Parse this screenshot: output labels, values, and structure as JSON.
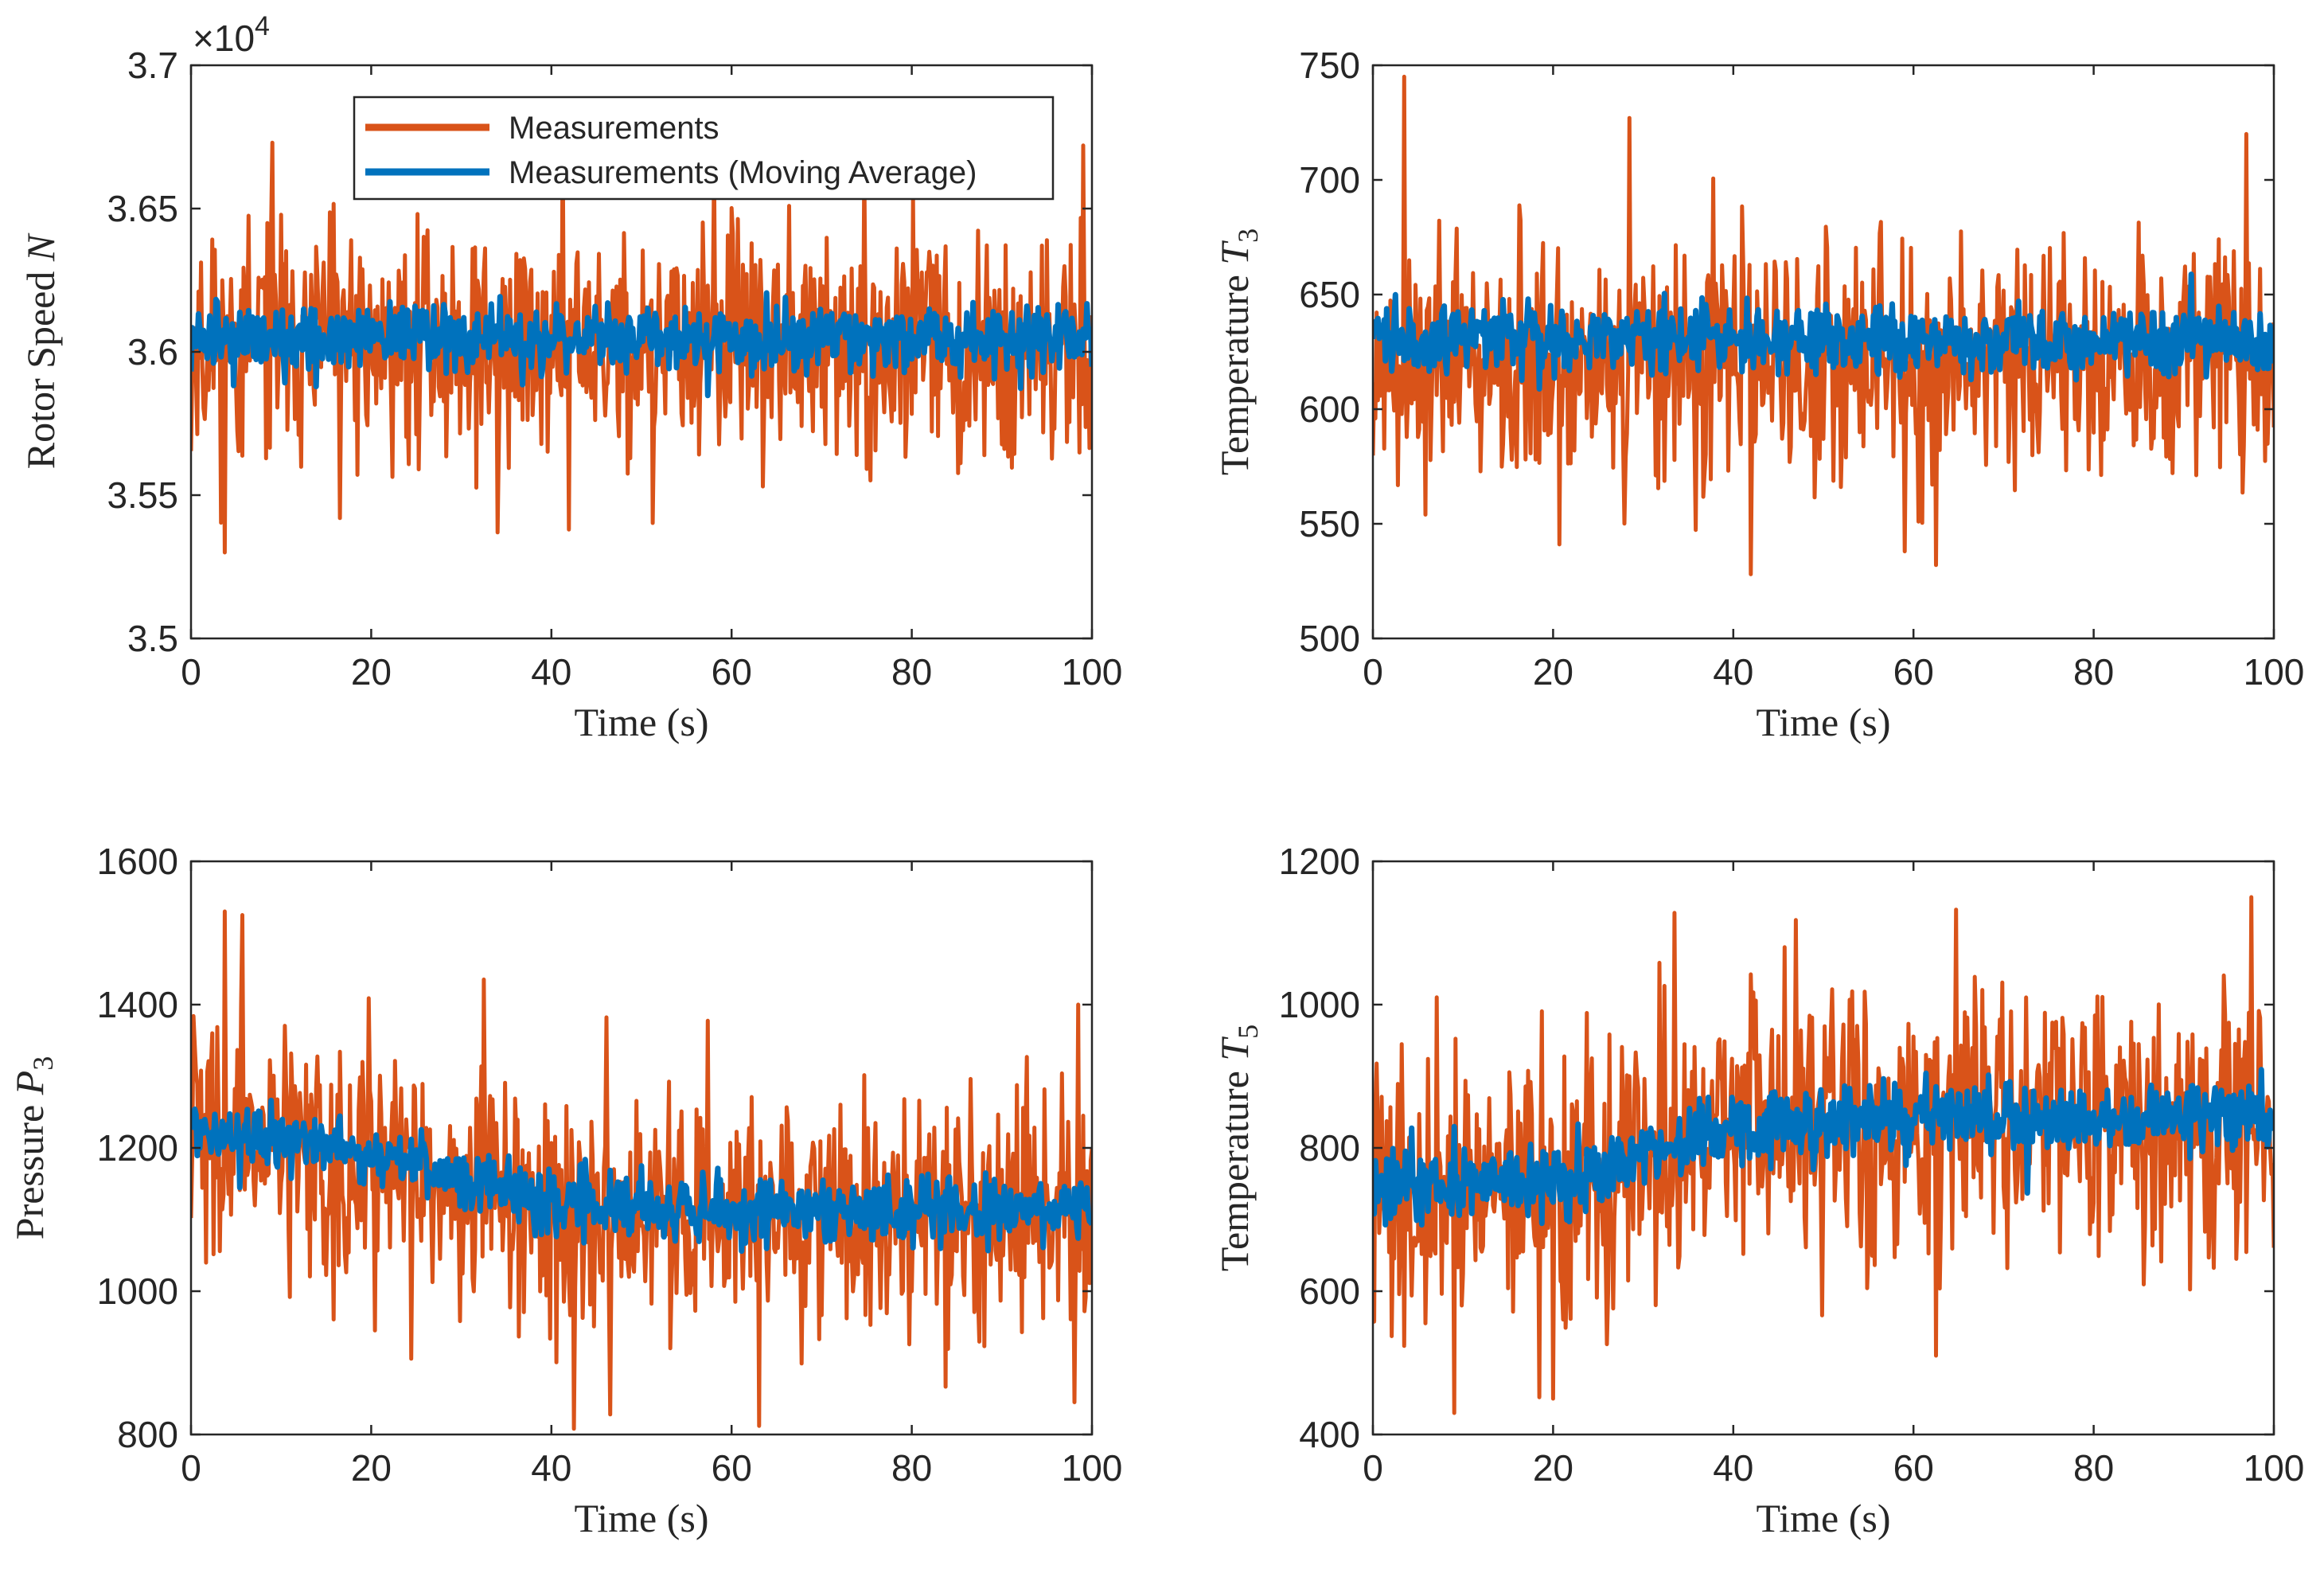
{
  "figure": {
    "legend": {
      "entries": [
        "Measurements",
        "Measurements (Moving Average)"
      ],
      "placement": "top-left of first panel"
    },
    "colors": {
      "measurements": "#D95319",
      "moving_average": "#0072BD",
      "axes": "#262626"
    }
  },
  "chart_data": [
    {
      "type": "line",
      "ylabel_text": "Rotor Speed ",
      "ylabel_sym": "N",
      "ylabel_sub": "",
      "xlabel": "Time (s)",
      "xlim": [
        0,
        100
      ],
      "ylim": [
        35000,
        37000
      ],
      "exponent": "×10",
      "exponent_power": "4",
      "xticks": [
        "0",
        "20",
        "40",
        "60",
        "80",
        "100"
      ],
      "yticks": [
        "3.5",
        "3.55",
        "3.6",
        "3.65",
        "3.7"
      ],
      "series": [
        {
          "name": "Measurements",
          "mean": [
            [
              0,
              36020
            ],
            [
              100,
              36020
            ]
          ],
          "noise_sd": 200,
          "seed": 11,
          "dips": [
            [
              3.8,
              35300
            ],
            [
              42,
              35380
            ],
            [
              34,
              35370
            ],
            [
              16.5,
              35420
            ]
          ],
          "peaks": [
            [
              9,
              36730
            ],
            [
              99,
              36720
            ],
            [
              58,
              36640
            ]
          ]
        },
        {
          "name": "Measurements (Moving Average)",
          "mean": [
            [
              0,
              36050
            ],
            [
              100,
              36050
            ]
          ],
          "noise_sd": 55,
          "seed": 12
        }
      ]
    },
    {
      "type": "line",
      "ylabel_text": "Temperature ",
      "ylabel_sym": "T",
      "ylabel_sub": "3",
      "xlabel": "Time (s)",
      "xlim": [
        0,
        100
      ],
      "ylim": [
        500,
        750
      ],
      "exponent": "",
      "exponent_power": "",
      "xticks": [
        "0",
        "20",
        "40",
        "60",
        "80",
        "100"
      ],
      "yticks": [
        "500",
        "550",
        "600",
        "650",
        "700",
        "750"
      ],
      "series": [
        {
          "name": "Measurements",
          "mean": [
            [
              0,
              620
            ],
            [
              100,
              620
            ]
          ],
          "noise_sd": 25,
          "seed": 21,
          "dips": [
            [
              42,
              528
            ],
            [
              62.5,
              532
            ],
            [
              59,
              538
            ],
            [
              20.7,
              541
            ]
          ],
          "peaks": [
            [
              3.5,
              745
            ],
            [
              28.5,
              727
            ],
            [
              97,
              720
            ]
          ]
        },
        {
          "name": "Measurements (Moving Average)",
          "mean": [
            [
              0,
              632
            ],
            [
              100,
              630
            ]
          ],
          "noise_sd": 7,
          "seed": 22
        }
      ]
    },
    {
      "type": "line",
      "ylabel_text": "Pressure ",
      "ylabel_sym": "P",
      "ylabel_sub": "3",
      "xlabel": "Time (s)",
      "xlim": [
        0,
        100
      ],
      "ylim": [
        800,
        1600
      ],
      "exponent": "",
      "exponent_power": "",
      "xticks": [
        "0",
        "20",
        "40",
        "60",
        "80",
        "100"
      ],
      "yticks": [
        "800",
        "1000",
        "1200",
        "1400",
        "1600"
      ],
      "series": [
        {
          "name": "Measurements",
          "mean": [
            [
              0,
              1220
            ],
            [
              20,
              1190
            ],
            [
              40,
              1110
            ],
            [
              60,
              1100
            ],
            [
              100,
              1110
            ]
          ],
          "noise_sd": 85,
          "seed": 31,
          "dips": [
            [
              42.5,
              808
            ],
            [
              63,
              812
            ],
            [
              46.5,
              828
            ],
            [
              98,
              845
            ]
          ],
          "peaks": [
            [
              3.7,
              1530
            ],
            [
              5.7,
              1525
            ],
            [
              32.5,
              1435
            ],
            [
              98.5,
              1400
            ]
          ]
        },
        {
          "name": "Measurements (Moving Average)",
          "mean": [
            [
              0,
              1225
            ],
            [
              20,
              1195
            ],
            [
              40,
              1120
            ],
            [
              60,
              1110
            ],
            [
              100,
              1115
            ]
          ],
          "noise_sd": 22,
          "seed": 32
        }
      ]
    },
    {
      "type": "line",
      "ylabel_text": "Temperature ",
      "ylabel_sym": "T",
      "ylabel_sub": "5",
      "xlabel": "Time (s)",
      "xlim": [
        0,
        100
      ],
      "ylim": [
        400,
        1200
      ],
      "exponent": "",
      "exponent_power": "",
      "xticks": [
        "0",
        "20",
        "40",
        "60",
        "80",
        "100"
      ],
      "yticks": [
        "400",
        "600",
        "800",
        "1000",
        "1200"
      ],
      "series": [
        {
          "name": "Measurements",
          "mean": [
            [
              0,
              735
            ],
            [
              20,
              735
            ],
            [
              40,
              830
            ],
            [
              60,
              835
            ],
            [
              100,
              840
            ]
          ],
          "noise_sd": 90,
          "seed": 41,
          "dips": [
            [
              9,
              430
            ],
            [
              18.5,
              452
            ],
            [
              20,
              450
            ],
            [
              62.5,
              510
            ]
          ],
          "peaks": [
            [
              97.5,
              1150
            ],
            [
              33.5,
              1128
            ],
            [
              47,
              1118
            ]
          ]
        },
        {
          "name": "Measurements (Moving Average)",
          "mean": [
            [
              0,
              745
            ],
            [
              20,
              750
            ],
            [
              40,
              830
            ],
            [
              60,
              840
            ],
            [
              100,
              845
            ]
          ],
          "noise_sd": 25,
          "seed": 42
        }
      ]
    }
  ]
}
